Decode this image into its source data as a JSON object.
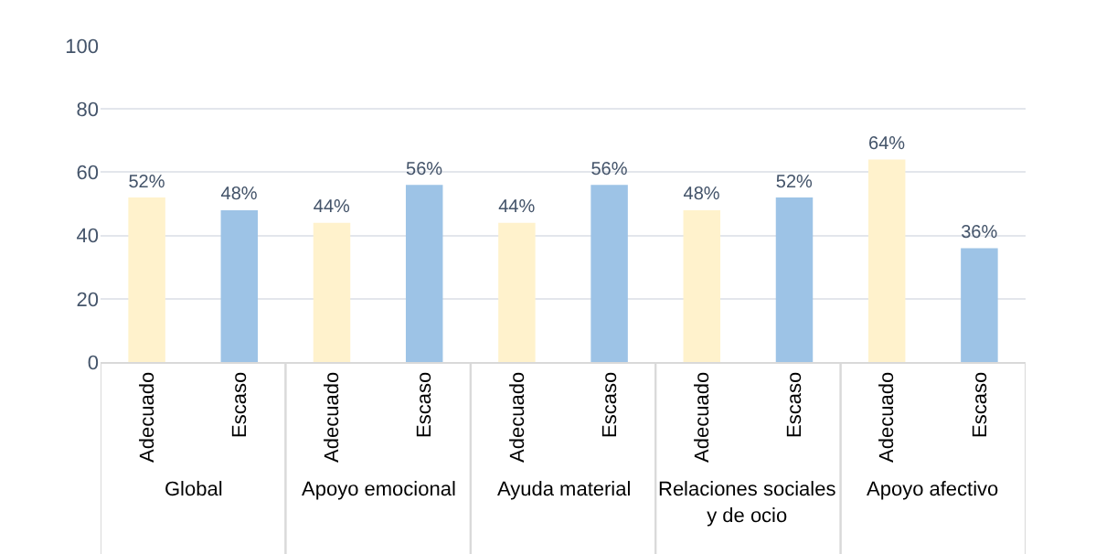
{
  "chart_data": {
    "type": "bar",
    "categories": [
      "Adecuado",
      "Escaso",
      "Adecuado",
      "Escaso",
      "Adecuado",
      "Escaso",
      "Adecuado",
      "Escaso",
      "Adecuado",
      "Escaso"
    ],
    "values": [
      52,
      48,
      44,
      56,
      44,
      56,
      48,
      52,
      64,
      36
    ],
    "value_labels": [
      "52%",
      "48%",
      "44%",
      "56%",
      "44%",
      "56%",
      "48%",
      "52%",
      "64%",
      "36%"
    ],
    "colors": [
      "#fff2cc",
      "#9dc3e6",
      "#fff2cc",
      "#9dc3e6",
      "#fff2cc",
      "#9dc3e6",
      "#fff2cc",
      "#9dc3e6",
      "#fff2cc",
      "#9dc3e6"
    ],
    "annotations": [
      "Global",
      "Apoyo emocional",
      "Ayuda material",
      "Relaciones sociales y de ocio",
      "Apoyo afectivo"
    ],
    "ylim": [
      0,
      100
    ],
    "yticks": [
      0,
      20,
      40,
      60,
      80,
      100
    ],
    "grid": "y"
  }
}
